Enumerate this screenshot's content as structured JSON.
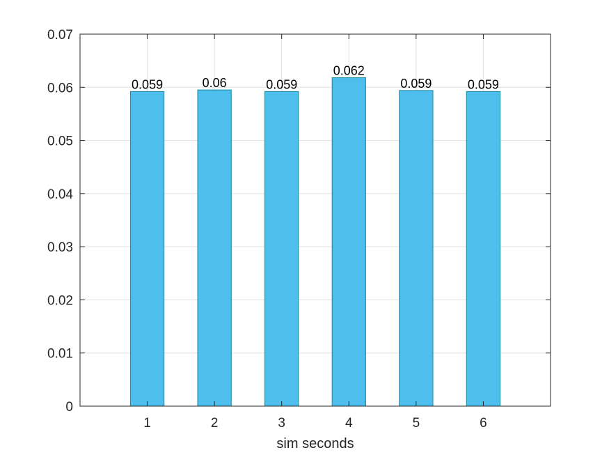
{
  "chart_data": {
    "type": "bar",
    "title": "",
    "xlabel": "sim seconds",
    "ylabel": "",
    "categories": [
      "1",
      "2",
      "3",
      "4",
      "5",
      "6"
    ],
    "values": [
      0.0592,
      0.0595,
      0.0592,
      0.0618,
      0.0594,
      0.0592
    ],
    "data_labels": [
      "0.059",
      "0.06",
      "0.059",
      "0.062",
      "0.059",
      "0.059"
    ],
    "xlim": [
      0,
      7
    ],
    "ylim": [
      0,
      0.07
    ],
    "yticks": [
      0,
      0.01,
      0.02,
      0.03,
      0.04,
      0.05,
      0.06,
      0.07
    ],
    "ytick_labels": [
      "0",
      "0.01",
      "0.02",
      "0.03",
      "0.04",
      "0.05",
      "0.06",
      "0.07"
    ],
    "grid": true,
    "bar_color": "#4DBEEE",
    "bar_edge_color": "#1B8A9A"
  }
}
